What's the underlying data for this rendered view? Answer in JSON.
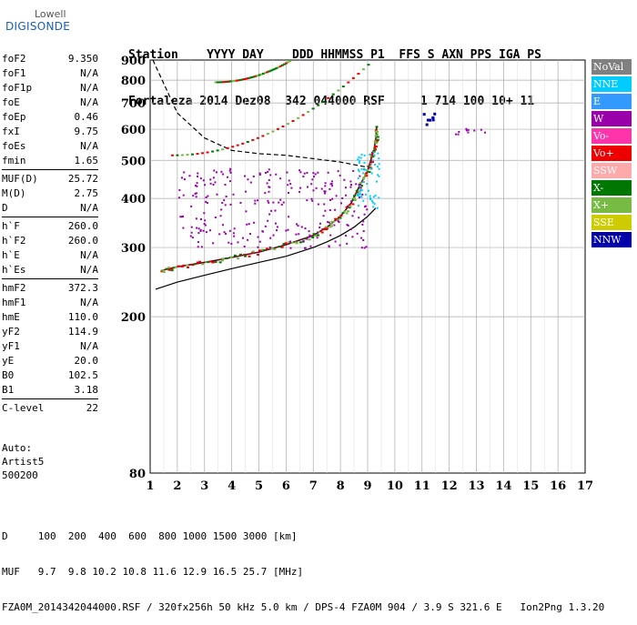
{
  "logo": {
    "line1": "Lowell",
    "line2": "DIGISONDE"
  },
  "header": {
    "line1": "Station    YYYY DAY    DDD HHMMSS P1  FFS S AXN PPS IGA PS",
    "line2": "Fortaleza 2014 Dez08  342 044000 RSF     1 714 100 10+ 11"
  },
  "params": [
    [
      {
        "k": "foF2",
        "v": "9.350"
      },
      {
        "k": "foF1",
        "v": "N/A"
      },
      {
        "k": "foF1p",
        "v": "N/A"
      },
      {
        "k": "foE",
        "v": "N/A"
      },
      {
        "k": "foEp",
        "v": "0.46"
      },
      {
        "k": "fxI",
        "v": "9.75"
      },
      {
        "k": "foEs",
        "v": "N/A"
      },
      {
        "k": "fmin",
        "v": "1.65"
      }
    ],
    [
      {
        "k": "MUF(D)",
        "v": "25.72"
      },
      {
        "k": "M(D)",
        "v": "2.75"
      },
      {
        "k": "D",
        "v": "N/A"
      }
    ],
    [
      {
        "k": "h`F",
        "v": "260.0"
      },
      {
        "k": "h`F2",
        "v": "260.0"
      },
      {
        "k": "h`E",
        "v": "N/A"
      },
      {
        "k": "h`Es",
        "v": "N/A"
      }
    ],
    [
      {
        "k": "hmF2",
        "v": "372.3"
      },
      {
        "k": "hmF1",
        "v": "N/A"
      },
      {
        "k": "hmE",
        "v": "110.0"
      },
      {
        "k": "yF2",
        "v": "114.9"
      },
      {
        "k": "yF1",
        "v": "N/A"
      },
      {
        "k": "yE",
        "v": "20.0"
      },
      {
        "k": "B0",
        "v": "102.5"
      },
      {
        "k": "B1",
        "v": "3.18"
      }
    ],
    [
      {
        "k": "C-level",
        "v": "22"
      }
    ]
  ],
  "auto": {
    "line1": "Auto:",
    "line2": "Artist5",
    "line3": "500200"
  },
  "footer": {
    "line1": "D     100  200  400  600  800 1000 1500 3000 [km]",
    "line2": "MUF   9.7  9.8 10.2 10.8 11.6 12.9 16.5 25.7 [MHz]",
    "line3": "FZA0M_2014342044000.RSF / 320fx256h 50 kHz 5.0 km / DPS-4 FZA0M 904 / 3.9 S 321.6 E   Ion2Png 1.3.20"
  },
  "legend": [
    {
      "label": "NoVal",
      "color": "#808080"
    },
    {
      "label": "NNE",
      "color": "#00ccff"
    },
    {
      "label": "E",
      "color": "#3399ff"
    },
    {
      "label": "W",
      "color": "#9900aa"
    },
    {
      "label": "Vo-",
      "color": "#ff33aa"
    },
    {
      "label": "Vo+",
      "color": "#ee0000"
    },
    {
      "label": "SSW",
      "color": "#ffaaaa"
    },
    {
      "label": "X-",
      "color": "#007700"
    },
    {
      "label": "X+",
      "color": "#77bb44"
    },
    {
      "label": "SSE",
      "color": "#cccc00"
    },
    {
      "label": "NNW",
      "color": "#0000aa"
    }
  ],
  "chart_data": {
    "type": "scatter",
    "xlabel": "",
    "ylabel": "",
    "xlim": [
      1,
      17
    ],
    "ylim": [
      80,
      900
    ],
    "yscale": "log",
    "xticks": [
      1,
      2,
      3,
      4,
      5,
      6,
      7,
      8,
      9,
      10,
      11,
      12,
      13,
      14,
      15,
      16,
      17
    ],
    "yticks": [
      80,
      200,
      300,
      400,
      500,
      600,
      700,
      800,
      900
    ],
    "grid": true,
    "legend_position": "right",
    "series": [
      {
        "name": "",
        "role": "profile",
        "color": "#000000",
        "x": [
          1.2,
          2,
          3,
          4,
          5,
          6,
          7,
          7.5,
          8,
          8.5,
          9,
          9.2,
          9.3
        ],
        "y": [
          235,
          245,
          255,
          265,
          275,
          285,
          300,
          310,
          322,
          338,
          360,
          372,
          378
        ]
      },
      {
        "name": "",
        "role": "trace",
        "color": "#660022",
        "x": [
          1.4,
          2,
          3,
          4,
          5,
          6,
          7,
          7.5,
          8,
          8.4,
          8.7,
          9,
          9.15,
          9.25,
          9.3,
          9.33
        ],
        "y": [
          262,
          268,
          275,
          283,
          292,
          305,
          322,
          338,
          360,
          390,
          430,
          470,
          510,
          540,
          570,
          610
        ]
      },
      {
        "name": "",
        "role": "mufline",
        "color": "#000000",
        "dashed": true,
        "x": [
          1.1,
          2,
          3,
          4,
          5,
          6,
          7,
          8,
          9
        ],
        "y": [
          900,
          660,
          570,
          530,
          520,
          515,
          505,
          495,
          480
        ]
      }
    ]
  }
}
